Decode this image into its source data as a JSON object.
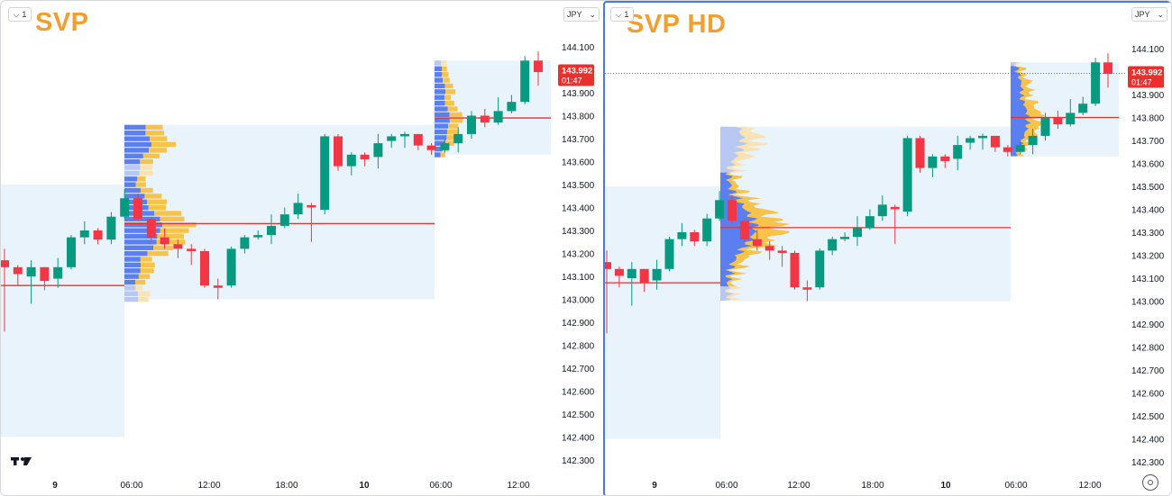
{
  "left": {
    "title": "SVP",
    "interval_label": "1",
    "currency": "JPY",
    "price_tag": {
      "price": "143.992",
      "countdown": "01:47"
    },
    "logo": "TV",
    "x_labels": [
      "9",
      "06:00",
      "12:00",
      "18:00",
      "10",
      "06:00",
      "12:00"
    ]
  },
  "right": {
    "title": "SVP HD",
    "interval_label": "1",
    "currency": "JPY",
    "price_tag": {
      "price": "143.992",
      "countdown": "01:47"
    },
    "x_labels": [
      "9",
      "06:00",
      "12:00",
      "18:00",
      "10",
      "06:00",
      "12:00"
    ]
  },
  "colors": {
    "up": "#089981",
    "down": "#f23645",
    "poc": "#e8302e",
    "profile_bg": "#e8f3fb",
    "profile_up": "#5b7ff0",
    "profile_up_light": "#b9c8f3",
    "profile_down": "#f7c34a",
    "profile_down_light": "#f8e3b5",
    "title": "#f0a030"
  },
  "chart_data": [
    {
      "type": "candlestick",
      "title": "SVP",
      "y_ticks": [
        "144.100",
        "144.000",
        "143.900",
        "143.800",
        "143.700",
        "143.600",
        "143.500",
        "143.400",
        "143.300",
        "143.200",
        "143.100",
        "143.000",
        "142.900",
        "142.800",
        "142.700",
        "142.600",
        "142.500",
        "142.400",
        "142.300"
      ],
      "x_ticks": [
        "9",
        "06:00",
        "12:00",
        "18:00",
        "10",
        "06:00",
        "12:00"
      ],
      "last_price": 143.992,
      "candles": [
        [
          143.17,
          143.14,
          143.22,
          142.86
        ],
        [
          143.14,
          143.11,
          143.15,
          143.06
        ],
        [
          143.1,
          143.14,
          143.17,
          142.98
        ],
        [
          143.14,
          143.08,
          143.14,
          143.04
        ],
        [
          143.09,
          143.14,
          143.18,
          143.05
        ],
        [
          143.14,
          143.27,
          143.28,
          143.13
        ],
        [
          143.27,
          143.3,
          143.34,
          143.24
        ],
        [
          143.3,
          143.26,
          143.31,
          143.24
        ],
        [
          143.26,
          143.36,
          143.38,
          143.24
        ],
        [
          143.36,
          143.44,
          143.48,
          143.35
        ],
        [
          143.44,
          143.35,
          143.46,
          143.34
        ],
        [
          143.35,
          143.27,
          143.36,
          143.25
        ],
        [
          143.27,
          143.24,
          143.31,
          143.22
        ],
        [
          143.24,
          143.22,
          143.26,
          143.18
        ],
        [
          143.22,
          143.21,
          143.24,
          143.15
        ],
        [
          143.21,
          143.06,
          143.22,
          143.05
        ],
        [
          143.06,
          143.05,
          143.09,
          143.0
        ],
        [
          143.06,
          143.22,
          143.23,
          143.05
        ],
        [
          143.22,
          143.27,
          143.28,
          143.2
        ],
        [
          143.27,
          143.28,
          143.3,
          143.26
        ],
        [
          143.28,
          143.32,
          143.37,
          143.24
        ],
        [
          143.32,
          143.37,
          143.4,
          143.31
        ],
        [
          143.37,
          143.42,
          143.46,
          143.35
        ],
        [
          143.41,
          143.4,
          143.42,
          143.25
        ],
        [
          143.39,
          143.71,
          143.72,
          143.37
        ],
        [
          143.71,
          143.58,
          143.72,
          143.56
        ],
        [
          143.58,
          143.63,
          143.64,
          143.54
        ],
        [
          143.63,
          143.61,
          143.64,
          143.58
        ],
        [
          143.62,
          143.68,
          143.72,
          143.57
        ],
        [
          143.69,
          143.71,
          143.72,
          143.66
        ],
        [
          143.71,
          143.72,
          143.73,
          143.66
        ],
        [
          143.72,
          143.67,
          143.72,
          143.65
        ],
        [
          143.67,
          143.65,
          143.68,
          143.63
        ],
        [
          143.65,
          143.68,
          143.7,
          143.64
        ],
        [
          143.68,
          143.72,
          143.75,
          143.64
        ],
        [
          143.72,
          143.8,
          143.82,
          143.7
        ],
        [
          143.8,
          143.77,
          143.83,
          143.75
        ],
        [
          143.77,
          143.82,
          143.88,
          143.76
        ],
        [
          143.82,
          143.86,
          143.89,
          143.81
        ],
        [
          143.86,
          144.04,
          144.06,
          143.85
        ],
        [
          144.04,
          143.99,
          144.08,
          143.93
        ]
      ],
      "poc_levels": [
        143.06,
        143.33,
        143.79
      ]
    },
    {
      "type": "candlestick",
      "title": "SVP HD",
      "y_ticks": [
        "144.100",
        "144.000",
        "143.900",
        "143.800",
        "143.700",
        "143.600",
        "143.500",
        "143.400",
        "143.300",
        "143.200",
        "143.100",
        "143.000",
        "142.900",
        "142.800",
        "142.700",
        "142.600",
        "142.500",
        "142.400",
        "142.300"
      ],
      "x_ticks": [
        "9",
        "06:00",
        "12:00",
        "18:00",
        "10",
        "06:00",
        "12:00"
      ],
      "last_price": 143.992,
      "poc_levels": [
        143.08,
        143.32,
        143.8
      ]
    }
  ]
}
